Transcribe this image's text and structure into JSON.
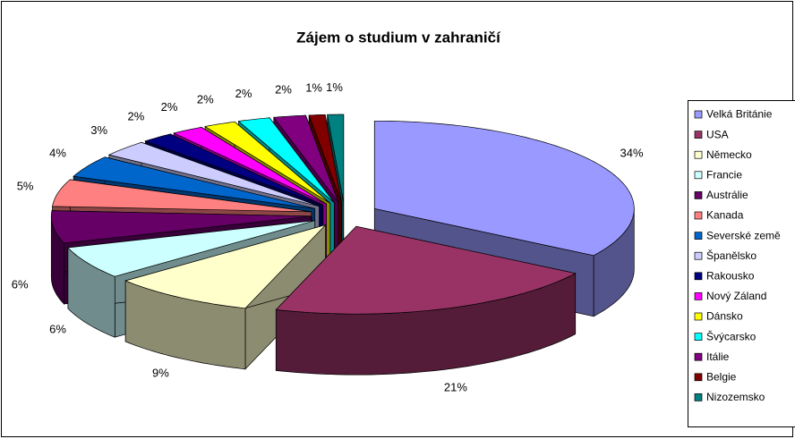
{
  "chart_data": {
    "type": "pie",
    "title": "Zájem o studium v zahraničí",
    "categories": [
      "Velká Británie",
      "USA",
      "Německo",
      "Francie",
      "Austrálie",
      "Kanada",
      "Severské země",
      "Španělsko",
      "Rakousko",
      "Nový Záland",
      "Dánsko",
      "Švýcarsko",
      "Itálie",
      "Belgie",
      "Nizozemsko"
    ],
    "values": [
      34,
      21,
      9,
      6,
      6,
      5,
      4,
      3,
      2,
      2,
      2,
      2,
      2,
      1,
      1
    ],
    "value_labels": [
      "34%",
      "21%",
      "9%",
      "6%",
      "6%",
      "5%",
      "4%",
      "3%",
      "2%",
      "2%",
      "2%",
      "2%",
      "2%",
      "1%",
      "1%"
    ],
    "colors": [
      "#9999FF",
      "#993366",
      "#FFFFCC",
      "#CCFFFF",
      "#660066",
      "#FF8080",
      "#0066CC",
      "#CCCCFF",
      "#000080",
      "#FF00FF",
      "#FFFF00",
      "#00FFFF",
      "#800080",
      "#800000",
      "#008080"
    ],
    "legend": "right"
  }
}
